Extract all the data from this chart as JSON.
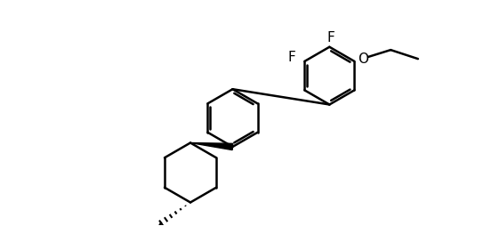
{
  "background": "#ffffff",
  "line_color": "#000000",
  "line_width": 1.8,
  "font_size": 11,
  "label_F1": "F",
  "label_F2": "F",
  "label_O": "O",
  "figsize": [
    5.62,
    2.54
  ],
  "dpi": 100
}
